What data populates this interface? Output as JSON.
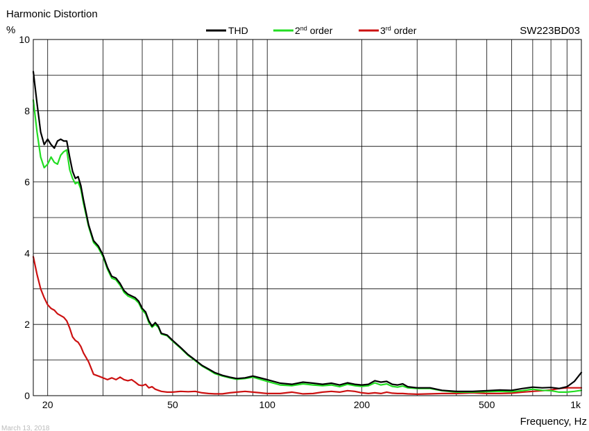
{
  "header": {
    "title": "Harmonic Distortion",
    "unit": "%",
    "model": "SW223BD03",
    "date": "March 13, 2018"
  },
  "chart_data": {
    "type": "line",
    "title": "Harmonic Distortion",
    "ylabel": "%",
    "xlabel": "Frequency, Hz",
    "xscale": "log",
    "xlim": [
      18,
      1000
    ],
    "ylim": [
      0,
      10
    ],
    "grid": true,
    "legend_position": "top",
    "x_ticks": [
      {
        "value": 20,
        "label": "20"
      },
      {
        "value": 50,
        "label": "50"
      },
      {
        "value": 100,
        "label": "100"
      },
      {
        "value": 200,
        "label": "200"
      },
      {
        "value": 500,
        "label": "500"
      },
      {
        "value": 1000,
        "label": "1k"
      }
    ],
    "y_ticks": [
      {
        "value": 0,
        "label": "0"
      },
      {
        "value": 2,
        "label": "2"
      },
      {
        "value": 4,
        "label": "4"
      },
      {
        "value": 6,
        "label": "6"
      },
      {
        "value": 8,
        "label": "8"
      },
      {
        "value": 10,
        "label": "10"
      }
    ],
    "series": [
      {
        "name": "THD",
        "color": "#000000",
        "points": [
          [
            18,
            9.1
          ],
          [
            18.5,
            8.2
          ],
          [
            19,
            7.4
          ],
          [
            19.5,
            7.05
          ],
          [
            20,
            7.2
          ],
          [
            20.5,
            7.05
          ],
          [
            21,
            6.95
          ],
          [
            21.5,
            7.15
          ],
          [
            22,
            7.2
          ],
          [
            22.5,
            7.15
          ],
          [
            23,
            7.15
          ],
          [
            23.5,
            6.7
          ],
          [
            24,
            6.3
          ],
          [
            24.5,
            6.1
          ],
          [
            25,
            6.15
          ],
          [
            25.5,
            5.9
          ],
          [
            26,
            5.5
          ],
          [
            27,
            4.8
          ],
          [
            28,
            4.35
          ],
          [
            29,
            4.2
          ],
          [
            30,
            3.95
          ],
          [
            31,
            3.6
          ],
          [
            32,
            3.35
          ],
          [
            33,
            3.3
          ],
          [
            34,
            3.15
          ],
          [
            35,
            2.95
          ],
          [
            36,
            2.85
          ],
          [
            37,
            2.8
          ],
          [
            38,
            2.75
          ],
          [
            39,
            2.65
          ],
          [
            40,
            2.45
          ],
          [
            41,
            2.35
          ],
          [
            42,
            2.1
          ],
          [
            43,
            1.95
          ],
          [
            44,
            2.05
          ],
          [
            45,
            1.95
          ],
          [
            46,
            1.75
          ],
          [
            48,
            1.7
          ],
          [
            50,
            1.55
          ],
          [
            53,
            1.35
          ],
          [
            56,
            1.15
          ],
          [
            59,
            1.0
          ],
          [
            62,
            0.85
          ],
          [
            65,
            0.75
          ],
          [
            68,
            0.65
          ],
          [
            72,
            0.57
          ],
          [
            76,
            0.52
          ],
          [
            80,
            0.48
          ],
          [
            85,
            0.5
          ],
          [
            90,
            0.55
          ],
          [
            95,
            0.5
          ],
          [
            100,
            0.45
          ],
          [
            110,
            0.35
          ],
          [
            120,
            0.32
          ],
          [
            130,
            0.38
          ],
          [
            140,
            0.35
          ],
          [
            150,
            0.32
          ],
          [
            160,
            0.35
          ],
          [
            170,
            0.3
          ],
          [
            180,
            0.36
          ],
          [
            190,
            0.32
          ],
          [
            200,
            0.3
          ],
          [
            210,
            0.32
          ],
          [
            220,
            0.42
          ],
          [
            230,
            0.38
          ],
          [
            240,
            0.4
          ],
          [
            250,
            0.32
          ],
          [
            260,
            0.3
          ],
          [
            270,
            0.33
          ],
          [
            280,
            0.25
          ],
          [
            300,
            0.22
          ],
          [
            330,
            0.22
          ],
          [
            360,
            0.15
          ],
          [
            400,
            0.12
          ],
          [
            450,
            0.12
          ],
          [
            500,
            0.14
          ],
          [
            550,
            0.16
          ],
          [
            600,
            0.15
          ],
          [
            650,
            0.2
          ],
          [
            700,
            0.24
          ],
          [
            750,
            0.22
          ],
          [
            800,
            0.23
          ],
          [
            850,
            0.2
          ],
          [
            900,
            0.25
          ],
          [
            950,
            0.4
          ],
          [
            1000,
            0.65
          ]
        ]
      },
      {
        "name": "2nd order",
        "color": "#22dd22",
        "points": [
          [
            18,
            8.3
          ],
          [
            18.5,
            7.4
          ],
          [
            19,
            6.7
          ],
          [
            19.5,
            6.4
          ],
          [
            20,
            6.5
          ],
          [
            20.5,
            6.7
          ],
          [
            21,
            6.55
          ],
          [
            21.5,
            6.5
          ],
          [
            22,
            6.75
          ],
          [
            22.5,
            6.85
          ],
          [
            23,
            6.9
          ],
          [
            23.5,
            6.35
          ],
          [
            24,
            6.1
          ],
          [
            24.5,
            5.95
          ],
          [
            25,
            6.0
          ],
          [
            25.5,
            5.8
          ],
          [
            26,
            5.4
          ],
          [
            27,
            4.75
          ],
          [
            28,
            4.3
          ],
          [
            29,
            4.15
          ],
          [
            30,
            3.9
          ],
          [
            31,
            3.55
          ],
          [
            32,
            3.3
          ],
          [
            33,
            3.25
          ],
          [
            34,
            3.1
          ],
          [
            35,
            2.9
          ],
          [
            36,
            2.8
          ],
          [
            37,
            2.75
          ],
          [
            38,
            2.7
          ],
          [
            39,
            2.6
          ],
          [
            40,
            2.4
          ],
          [
            41,
            2.3
          ],
          [
            42,
            2.05
          ],
          [
            43,
            1.92
          ],
          [
            44,
            2.0
          ],
          [
            45,
            1.92
          ],
          [
            46,
            1.73
          ],
          [
            48,
            1.68
          ],
          [
            50,
            1.53
          ],
          [
            53,
            1.33
          ],
          [
            56,
            1.13
          ],
          [
            59,
            0.98
          ],
          [
            62,
            0.83
          ],
          [
            65,
            0.73
          ],
          [
            68,
            0.62
          ],
          [
            72,
            0.55
          ],
          [
            76,
            0.5
          ],
          [
            80,
            0.46
          ],
          [
            85,
            0.48
          ],
          [
            90,
            0.52
          ],
          [
            95,
            0.46
          ],
          [
            100,
            0.4
          ],
          [
            110,
            0.3
          ],
          [
            120,
            0.28
          ],
          [
            130,
            0.33
          ],
          [
            140,
            0.3
          ],
          [
            150,
            0.28
          ],
          [
            160,
            0.3
          ],
          [
            170,
            0.25
          ],
          [
            180,
            0.32
          ],
          [
            190,
            0.28
          ],
          [
            200,
            0.26
          ],
          [
            210,
            0.28
          ],
          [
            220,
            0.36
          ],
          [
            230,
            0.3
          ],
          [
            240,
            0.33
          ],
          [
            250,
            0.26
          ],
          [
            260,
            0.24
          ],
          [
            270,
            0.27
          ],
          [
            280,
            0.22
          ],
          [
            300,
            0.2
          ],
          [
            330,
            0.2
          ],
          [
            360,
            0.14
          ],
          [
            400,
            0.1
          ],
          [
            450,
            0.1
          ],
          [
            500,
            0.11
          ],
          [
            550,
            0.12
          ],
          [
            600,
            0.11
          ],
          [
            650,
            0.14
          ],
          [
            700,
            0.18
          ],
          [
            750,
            0.15
          ],
          [
            800,
            0.14
          ],
          [
            850,
            0.1
          ],
          [
            900,
            0.1
          ],
          [
            950,
            0.12
          ],
          [
            1000,
            0.15
          ]
        ]
      },
      {
        "name": "3rd order",
        "color": "#cc1111",
        "points": [
          [
            18,
            3.9
          ],
          [
            18.5,
            3.4
          ],
          [
            19,
            3.0
          ],
          [
            19.5,
            2.75
          ],
          [
            20,
            2.55
          ],
          [
            20.5,
            2.45
          ],
          [
            21,
            2.4
          ],
          [
            21.5,
            2.3
          ],
          [
            22,
            2.25
          ],
          [
            22.5,
            2.2
          ],
          [
            23,
            2.1
          ],
          [
            23.5,
            1.9
          ],
          [
            24,
            1.65
          ],
          [
            24.5,
            1.55
          ],
          [
            25,
            1.5
          ],
          [
            25.5,
            1.38
          ],
          [
            26,
            1.2
          ],
          [
            27,
            0.95
          ],
          [
            28,
            0.6
          ],
          [
            29,
            0.55
          ],
          [
            30,
            0.5
          ],
          [
            31,
            0.45
          ],
          [
            32,
            0.5
          ],
          [
            33,
            0.45
          ],
          [
            34,
            0.52
          ],
          [
            35,
            0.45
          ],
          [
            36,
            0.42
          ],
          [
            37,
            0.45
          ],
          [
            38,
            0.38
          ],
          [
            39,
            0.3
          ],
          [
            40,
            0.28
          ],
          [
            41,
            0.32
          ],
          [
            42,
            0.22
          ],
          [
            43,
            0.25
          ],
          [
            44,
            0.18
          ],
          [
            45,
            0.15
          ],
          [
            46,
            0.12
          ],
          [
            48,
            0.1
          ],
          [
            50,
            0.1
          ],
          [
            53,
            0.12
          ],
          [
            56,
            0.11
          ],
          [
            59,
            0.12
          ],
          [
            62,
            0.08
          ],
          [
            65,
            0.06
          ],
          [
            68,
            0.05
          ],
          [
            72,
            0.05
          ],
          [
            76,
            0.08
          ],
          [
            80,
            0.1
          ],
          [
            85,
            0.12
          ],
          [
            90,
            0.1
          ],
          [
            95,
            0.08
          ],
          [
            100,
            0.06
          ],
          [
            110,
            0.06
          ],
          [
            120,
            0.1
          ],
          [
            130,
            0.05
          ],
          [
            140,
            0.06
          ],
          [
            150,
            0.1
          ],
          [
            160,
            0.12
          ],
          [
            170,
            0.1
          ],
          [
            180,
            0.14
          ],
          [
            190,
            0.12
          ],
          [
            200,
            0.08
          ],
          [
            210,
            0.06
          ],
          [
            220,
            0.08
          ],
          [
            230,
            0.06
          ],
          [
            240,
            0.1
          ],
          [
            250,
            0.07
          ],
          [
            260,
            0.06
          ],
          [
            270,
            0.06
          ],
          [
            280,
            0.05
          ],
          [
            300,
            0.04
          ],
          [
            330,
            0.05
          ],
          [
            360,
            0.06
          ],
          [
            400,
            0.06
          ],
          [
            450,
            0.08
          ],
          [
            500,
            0.06
          ],
          [
            550,
            0.06
          ],
          [
            600,
            0.07
          ],
          [
            650,
            0.1
          ],
          [
            700,
            0.12
          ],
          [
            750,
            0.14
          ],
          [
            800,
            0.16
          ],
          [
            850,
            0.2
          ],
          [
            900,
            0.22
          ],
          [
            950,
            0.22
          ],
          [
            1000,
            0.22
          ]
        ]
      }
    ]
  }
}
